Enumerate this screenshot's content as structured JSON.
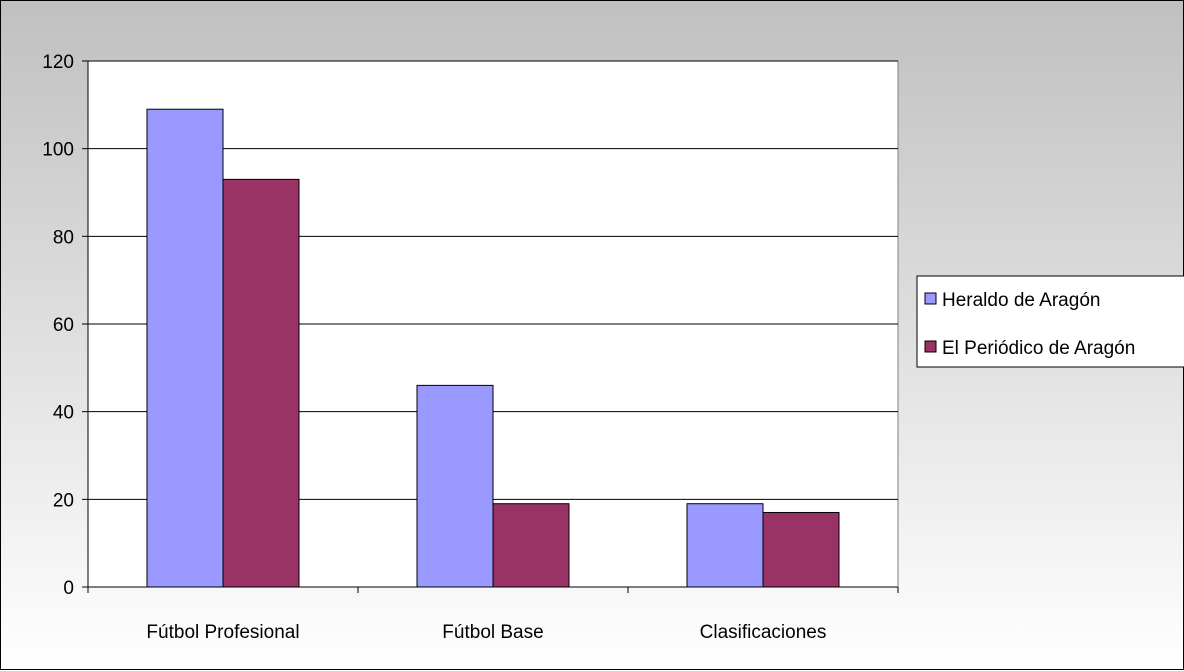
{
  "chart_data": {
    "type": "bar",
    "categories": [
      "Fútbol Profesional",
      "Fútbol Base",
      "Clasificaciones"
    ],
    "series": [
      {
        "name": "Heraldo de Aragón",
        "values": [
          109,
          46,
          19
        ],
        "color": "#9999ff"
      },
      {
        "name": "El Periódico de Aragón",
        "values": [
          93,
          19,
          17
        ],
        "color": "#993366"
      }
    ],
    "ylim": [
      0,
      120
    ],
    "yticks": [
      "0",
      "20",
      "40",
      "60",
      "80",
      "100",
      "120"
    ],
    "grid": true,
    "legend": "right"
  }
}
